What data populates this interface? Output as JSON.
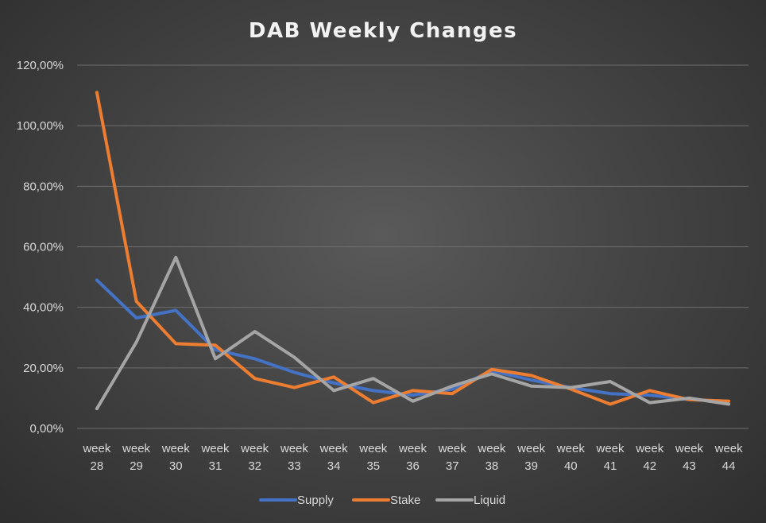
{
  "chart_data": {
    "type": "line",
    "title": "DAB Weekly Changes",
    "xlabel": "",
    "ylabel": "",
    "categories": [
      [
        "week",
        "28"
      ],
      [
        "week",
        "29"
      ],
      [
        "week",
        "30"
      ],
      [
        "week",
        "31"
      ],
      [
        "week",
        "32"
      ],
      [
        "week",
        "33"
      ],
      [
        "week",
        "34"
      ],
      [
        "week",
        "35"
      ],
      [
        "week",
        "36"
      ],
      [
        "week",
        "37"
      ],
      [
        "week",
        "38"
      ],
      [
        "week",
        "39"
      ],
      [
        "week",
        "40"
      ],
      [
        "week",
        "41"
      ],
      [
        "week",
        "42"
      ],
      [
        "week",
        "43"
      ],
      [
        "week",
        "44"
      ]
    ],
    "ylim": [
      0,
      120
    ],
    "yticks": [
      "0,00%",
      "20,00%",
      "40,00%",
      "60,00%",
      "80,00%",
      "100,00%",
      "120,00%"
    ],
    "grid": true,
    "legend_position": "bottom",
    "series": [
      {
        "name": "Supply",
        "color": "#4472c4",
        "values": [
          49.0,
          36.5,
          39.0,
          26.0,
          23.0,
          18.5,
          15.0,
          12.5,
          11.0,
          13.0,
          19.0,
          16.0,
          13.5,
          11.5,
          11.0,
          9.5,
          9.0
        ]
      },
      {
        "name": "Stake",
        "color": "#ed7d31",
        "values": [
          111.0,
          42.0,
          28.0,
          27.5,
          16.5,
          13.5,
          17.0,
          8.5,
          12.5,
          11.5,
          19.5,
          17.5,
          13.0,
          8.0,
          12.5,
          9.5,
          9.0
        ]
      },
      {
        "name": "Liquid",
        "color": "#a5a5a5",
        "values": [
          6.5,
          28.5,
          56.5,
          23.0,
          32.0,
          23.5,
          12.5,
          16.5,
          9.0,
          14.0,
          18.0,
          14.0,
          13.5,
          15.5,
          8.5,
          10.0,
          8.0
        ]
      }
    ]
  }
}
